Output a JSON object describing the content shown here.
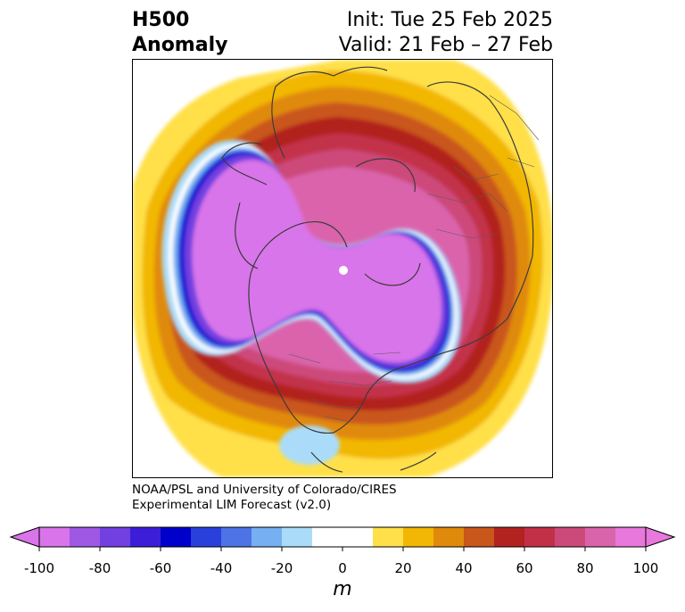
{
  "title": {
    "left_line1": "H500",
    "left_line2": "Anomaly",
    "right_line1": "Init: Tue 25 Feb 2025",
    "right_line2": "Valid: 21 Feb – 27 Feb"
  },
  "credit": {
    "line1": "NOAA/PSL and University of Colorado/CIRES",
    "line2": "Experimental LIM Forecast (v2.0)"
  },
  "colorbar": {
    "units": "m",
    "ticks": [
      "-100",
      "-80",
      "-60",
      "-40",
      "-20",
      "0",
      "20",
      "40",
      "60",
      "80",
      "100"
    ],
    "colors": [
      "#d974ea",
      "#9f58e4",
      "#7240e0",
      "#3c1ed8",
      "#0000cc",
      "#2a40dc",
      "#4d73e6",
      "#76b0f2",
      "#aadcfa",
      "#ffffff",
      "#ffffff",
      "#ffe04a",
      "#f2b705",
      "#e08a0b",
      "#c9561b",
      "#b2221f",
      "#c23048",
      "#cc4a7a",
      "#da64ac",
      "#e878dc"
    ],
    "under_color": "#d974ea",
    "over_color": "#e878dc"
  }
}
